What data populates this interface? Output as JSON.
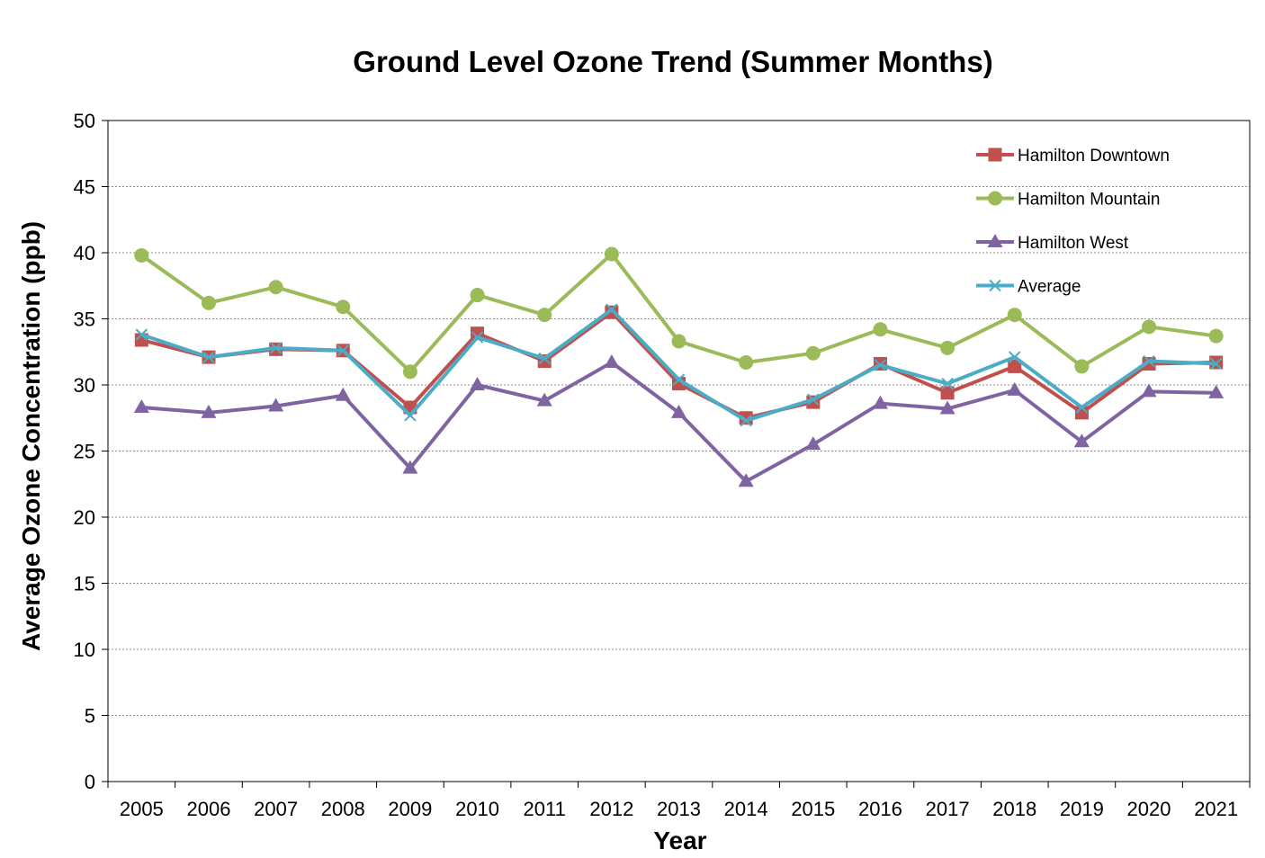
{
  "chart_data": {
    "type": "line",
    "title": "Ground Level Ozone Trend (Summer Months)",
    "xlabel": "Year",
    "ylabel": "Average Ozone Concentration (ppb)",
    "ylim": [
      0,
      50
    ],
    "yticks": [
      "0",
      "5",
      "10",
      "15",
      "20",
      "25",
      "30",
      "35",
      "40",
      "45",
      "50"
    ],
    "categories": [
      "2005",
      "2006",
      "2007",
      "2008",
      "2009",
      "2010",
      "2011",
      "2012",
      "2013",
      "2014",
      "2015",
      "2016",
      "2017",
      "2018",
      "2019",
      "2020",
      "2021"
    ],
    "grid": "horizontal dashed",
    "legend_position": "top-right",
    "series": [
      {
        "name": "Hamilton Downtown",
        "color": "#c0504d",
        "marker": "square",
        "values": [
          33.4,
          32.1,
          32.7,
          32.6,
          28.3,
          33.9,
          31.8,
          35.5,
          30.1,
          27.5,
          28.7,
          31.6,
          29.4,
          31.4,
          27.9,
          31.6,
          31.7
        ]
      },
      {
        "name": "Hamilton Mountain",
        "color": "#9bbb59",
        "marker": "circle",
        "values": [
          39.8,
          36.2,
          37.4,
          35.9,
          31.0,
          36.8,
          35.3,
          39.9,
          33.3,
          31.7,
          32.4,
          34.2,
          32.8,
          35.3,
          31.4,
          34.4,
          33.7
        ]
      },
      {
        "name": "Hamilton West",
        "color": "#8064a2",
        "marker": "triangle",
        "values": [
          28.3,
          27.9,
          28.4,
          29.2,
          23.7,
          30.0,
          28.8,
          31.7,
          27.9,
          22.7,
          25.5,
          28.6,
          28.2,
          29.6,
          25.7,
          29.5,
          29.4
        ]
      },
      {
        "name": "Average",
        "color": "#4bacc6",
        "marker": "x",
        "values": [
          33.8,
          32.1,
          32.8,
          32.6,
          27.7,
          33.6,
          32.0,
          35.7,
          30.4,
          27.3,
          28.9,
          31.5,
          30.1,
          32.1,
          28.3,
          31.8,
          31.6
        ]
      }
    ]
  }
}
